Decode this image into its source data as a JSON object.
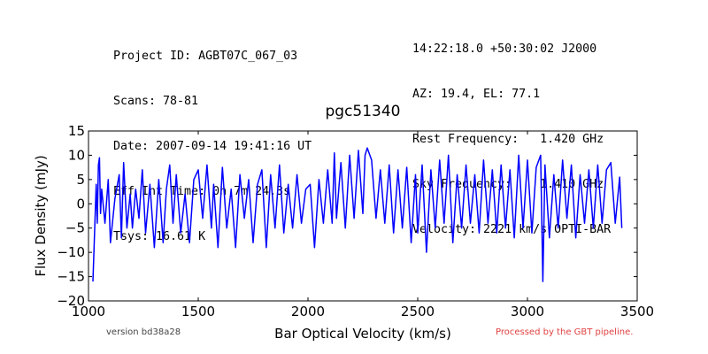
{
  "header": {
    "left": [
      "Project ID: AGBT07C_067_03",
      "Scans: 78-81",
      "Date: 2007-09-14 19:41:16 UT",
      "Eff Int Time: 0h 7m 24.3s",
      "Tsys: 16.61 K"
    ],
    "right": [
      "14:22:18.0 +50:30:02 J2000",
      "AZ: 19.4, EL: 77.1",
      "Rest Frequency:   1.420 GHz",
      "Sky Frequency:    1.410 GHz",
      "Velocity: 2221 km/s OPTI-BAR"
    ]
  },
  "footer": {
    "version": "version bd38a28",
    "processed": "Processed by the GBT pipeline."
  },
  "colors": {
    "series": "#0000ff",
    "processed_text": "#e04040"
  },
  "chart_data": {
    "type": "line",
    "title": "pgc51340",
    "xlabel": "Bar Optical Velocity (km/s)",
    "ylabel": "Flux Density (mJy)",
    "xlim": [
      1000,
      3500
    ],
    "ylim": [
      -20,
      15
    ],
    "xticks": [
      1000,
      1500,
      2000,
      2500,
      3000,
      3500
    ],
    "yticks": [
      -20,
      -15,
      -10,
      -5,
      0,
      5,
      10,
      15
    ],
    "grid": false,
    "series": [
      {
        "x": [
          1020,
          1030,
          1035,
          1040,
          1045,
          1050,
          1055,
          1060,
          1075,
          1090,
          1100,
          1120,
          1140,
          1150,
          1160,
          1175,
          1190,
          1200,
          1215,
          1230,
          1245,
          1260,
          1280,
          1300,
          1320,
          1340,
          1355,
          1370,
          1385,
          1400,
          1420,
          1440,
          1460,
          1480,
          1500,
          1520,
          1540,
          1560,
          1570,
          1590,
          1610,
          1630,
          1650,
          1670,
          1690,
          1710,
          1730,
          1750,
          1770,
          1790,
          1810,
          1830,
          1850,
          1870,
          1890,
          1910,
          1930,
          1950,
          1970,
          1990,
          2010,
          2030,
          2050,
          2070,
          2090,
          2110,
          2120,
          2130,
          2150,
          2170,
          2190,
          2210,
          2230,
          2250,
          2260,
          2270,
          2290,
          2310,
          2330,
          2350,
          2370,
          2390,
          2410,
          2430,
          2450,
          2470,
          2490,
          2500,
          2520,
          2540,
          2560,
          2580,
          2600,
          2620,
          2640,
          2660,
          2680,
          2700,
          2720,
          2740,
          2760,
          2780,
          2800,
          2820,
          2840,
          2860,
          2880,
          2900,
          2920,
          2940,
          2960,
          2980,
          3000,
          3020,
          3040,
          3060,
          3070,
          3080,
          3100,
          3120,
          3140,
          3160,
          3180,
          3200,
          3220,
          3240,
          3260,
          3280,
          3300,
          3320,
          3340,
          3360,
          3380,
          3400,
          3420,
          3430
        ],
        "y": [
          -16.0,
          -3.0,
          4.0,
          -4.0,
          8.0,
          9.5,
          -2.0,
          3.0,
          -4.0,
          5.0,
          -8.0,
          1.0,
          6.0,
          -7.0,
          8.5,
          -5.0,
          2.0,
          -5.0,
          3.0,
          -3.0,
          7.0,
          -6.0,
          4.0,
          -9.0,
          5.0,
          -8.0,
          3.0,
          8.0,
          -4.0,
          6.0,
          -6.0,
          2.0,
          -8.0,
          5.0,
          7.0,
          -3.0,
          8.0,
          -5.0,
          4.0,
          -9.0,
          7.5,
          -5.0,
          3.0,
          -9.0,
          6.0,
          -3.0,
          5.0,
          -8.0,
          4.0,
          7.0,
          -9.0,
          6.0,
          -5.0,
          8.0,
          -6.0,
          4.0,
          -5.0,
          6.0,
          -4.0,
          3.0,
          4.0,
          -9.0,
          5.0,
          -4.0,
          7.0,
          -4.0,
          10.5,
          -3.0,
          8.5,
          -5.0,
          10.0,
          -3.0,
          11.0,
          -2.0,
          10.0,
          11.5,
          9.0,
          -3.0,
          7.0,
          -4.0,
          8.0,
          -6.0,
          7.0,
          -5.0,
          7.5,
          -8.0,
          6.0,
          -6.0,
          8.0,
          -10.0,
          7.0,
          -5.0,
          9.0,
          -4.0,
          10.0,
          -8.0,
          6.0,
          -5.0,
          8.0,
          -4.0,
          6.0,
          -6.0,
          9.0,
          -4.0,
          7.0,
          -6.0,
          8.0,
          -5.0,
          7.0,
          -7.0,
          10.0,
          -5.0,
          9.0,
          -6.0,
          7.5,
          10.0,
          -16.0,
          8.0,
          -7.0,
          6.0,
          -5.0,
          9.0,
          -3.0,
          8.0,
          -7.0,
          6.0,
          -4.0,
          7.0,
          -5.0,
          8.0,
          -4.0,
          7.0,
          8.5,
          -4.0,
          5.5,
          -5.0
        ]
      }
    ]
  }
}
